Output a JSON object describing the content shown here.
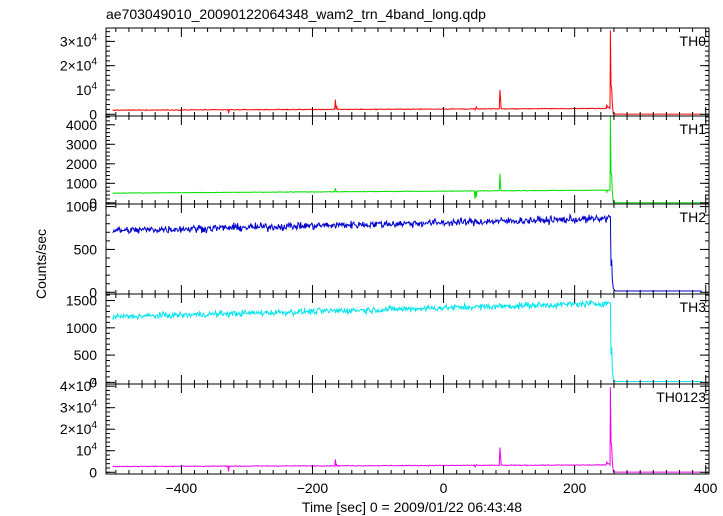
{
  "chart_data": {
    "type": "line",
    "title": "ae703049010_20090122064348_wam2_trn_4band_long.qdp",
    "xlabel": "Time [sec] 0 = 2009/01/22 06:43:48",
    "ylabel": "Counts/sec",
    "xlim": [
      -515,
      405
    ],
    "xticks": [
      -400,
      -200,
      0,
      200,
      400
    ],
    "xtick_labels": [
      "−400",
      "−200",
      "0",
      "200",
      "400"
    ],
    "panels": [
      {
        "name": "TH0",
        "color": "#ff0000",
        "ylim": [
          -700,
          35500
        ],
        "yticks": [
          0,
          10000,
          20000,
          30000
        ],
        "ytick_labels": [
          {
            "kind": "plain",
            "text": "0"
          },
          {
            "kind": "plain",
            "text": "10",
            "exp": "4"
          },
          {
            "kind": "sci",
            "mant": "2×10",
            "exp": "4"
          },
          {
            "kind": "sci",
            "mant": "3×10",
            "exp": "4"
          }
        ],
        "baseline_start": 1700,
        "baseline_end": 2400,
        "noise": 150,
        "pre_spike": 3000,
        "peak": 34500,
        "shoulder": 10500,
        "post": 100,
        "spikes": [
          [
            -328,
            400
          ],
          [
            -165,
            6000
          ],
          [
            -163,
            3500
          ],
          [
            48,
            1800
          ],
          [
            50,
            3000
          ],
          [
            86,
            10000
          ],
          [
            87,
            6000
          ],
          [
            249,
            4000
          ]
        ]
      },
      {
        "name": "TH1",
        "color": "#00e000",
        "ylim": [
          -60,
          4450
        ],
        "yticks": [
          0,
          1000,
          2000,
          3000,
          4000
        ],
        "ytick_labels": [
          {
            "kind": "plain",
            "text": "0"
          },
          {
            "kind": "plain",
            "text": "1000"
          },
          {
            "kind": "plain",
            "text": "2000"
          },
          {
            "kind": "plain",
            "text": "3000"
          },
          {
            "kind": "plain",
            "text": "4000"
          }
        ],
        "baseline_start": 500,
        "baseline_end": 650,
        "noise": 15,
        "pre_spike": 650,
        "peak": 4450,
        "shoulder": 1400,
        "post": 8,
        "spikes": [
          [
            -165,
            750
          ],
          [
            48,
            200
          ],
          [
            50,
            300
          ],
          [
            86,
            1500
          ],
          [
            87,
            800
          ],
          [
            249,
            550
          ]
        ]
      },
      {
        "name": "TH2",
        "color": "#0000cc",
        "ylim": [
          -20,
          1030
        ],
        "yticks": [
          0,
          500,
          1000
        ],
        "ytick_labels": [
          {
            "kind": "plain",
            "text": "0"
          },
          {
            "kind": "plain",
            "text": "500"
          },
          {
            "kind": "plain",
            "text": "1000"
          }
        ],
        "baseline_start": 720,
        "baseline_end": 860,
        "noise": 42,
        "pre_spike": 880,
        "peak": 880,
        "shoulder": 380,
        "post": 15,
        "spikes": []
      },
      {
        "name": "TH3",
        "color": "#00e5ee",
        "ylim": [
          -30,
          1620
        ],
        "yticks": [
          0,
          500,
          1000,
          1500
        ],
        "ytick_labels": [
          {
            "kind": "plain",
            "text": "0"
          },
          {
            "kind": "plain",
            "text": "500"
          },
          {
            "kind": "plain",
            "text": "1000"
          },
          {
            "kind": "plain",
            "text": "1500"
          }
        ],
        "baseline_start": 1200,
        "baseline_end": 1450,
        "noise": 55,
        "pre_spike": 1450,
        "peak": 1450,
        "shoulder": 650,
        "post": 15,
        "spikes": []
      },
      {
        "name": "TH0123",
        "color": "#ee00ee",
        "ylim": [
          -800,
          41000
        ],
        "yticks": [
          0,
          10000,
          20000,
          30000,
          40000
        ],
        "ytick_labels": [
          {
            "kind": "plain",
            "text": "0"
          },
          {
            "kind": "plain",
            "text": "10",
            "exp": "4"
          },
          {
            "kind": "sci",
            "mant": "2×10",
            "exp": "4"
          },
          {
            "kind": "sci",
            "mant": "3×10",
            "exp": "4"
          },
          {
            "kind": "sci",
            "mant": "4×10",
            "exp": "4"
          }
        ],
        "baseline_start": 2700,
        "baseline_end": 3400,
        "noise": 170,
        "pre_spike": 4000,
        "peak": 39500,
        "shoulder": 12500,
        "post": 100,
        "spikes": [
          [
            -328,
            400
          ],
          [
            -165,
            6000
          ],
          [
            -163,
            3500
          ],
          [
            48,
            2500
          ],
          [
            50,
            3500
          ],
          [
            86,
            11500
          ],
          [
            87,
            7000
          ],
          [
            249,
            5000
          ]
        ]
      }
    ],
    "grid": false,
    "legend": "none"
  }
}
